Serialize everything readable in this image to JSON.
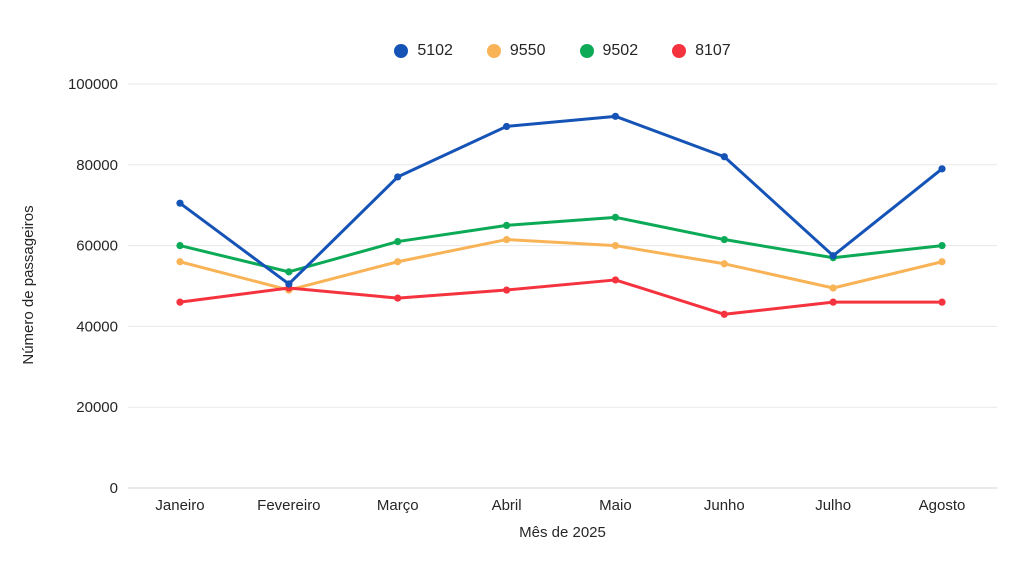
{
  "chart_data": {
    "type": "line",
    "x": [
      "Janeiro",
      "Fevereiro",
      "Março",
      "Abril",
      "Maio",
      "Junho",
      "Julho",
      "Agosto"
    ],
    "series": [
      {
        "name": "5102",
        "color": "#1553b6",
        "values": [
          70500,
          50500,
          77000,
          89500,
          92000,
          82000,
          57500,
          79000
        ]
      },
      {
        "name": "9550",
        "color": "#f9b357",
        "values": [
          56000,
          49000,
          56000,
          61500,
          60000,
          55500,
          49500,
          56000
        ]
      },
      {
        "name": "9502",
        "color": "#0caa57",
        "values": [
          60000,
          53500,
          61000,
          65000,
          67000,
          61500,
          57000,
          60000
        ]
      },
      {
        "name": "8107",
        "color": "#f5333f",
        "values": [
          46000,
          49500,
          47000,
          49000,
          51500,
          43000,
          46000,
          46000
        ]
      }
    ],
    "title": "",
    "xlabel": "Mês de 2025",
    "ylabel": "Número de passageiros",
    "ylim": [
      0,
      100000
    ],
    "yticks": [
      0,
      20000,
      40000,
      60000,
      80000,
      100000
    ],
    "grid": true,
    "legend_position": "top-center",
    "text_color": "#262626",
    "grid_color": "#e8e8e8",
    "axis_line_color": "#d6d6d6"
  }
}
